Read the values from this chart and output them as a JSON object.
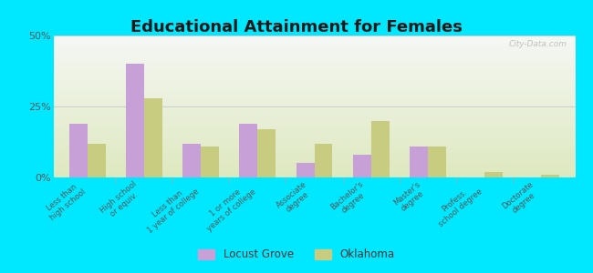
{
  "title": "Educational Attainment for Females",
  "categories": [
    "Less than\nhigh school",
    "High school\nor equiv.",
    "Less than\n1 year of college",
    "1 or more\nyears of college",
    "Associate\ndegree",
    "Bachelor's\ndegree",
    "Master's\ndegree",
    "Profess.\nschool degree",
    "Doctorate\ndegree"
  ],
  "locust_grove": [
    19,
    40,
    12,
    19,
    5,
    8,
    11,
    0,
    0
  ],
  "oklahoma": [
    12,
    28,
    11,
    17,
    12,
    20,
    11,
    2,
    1
  ],
  "locust_grove_color": "#c8a0d8",
  "oklahoma_color": "#c8cc80",
  "background_outer": "#00e8ff",
  "ylim": [
    0,
    50
  ],
  "yticks": [
    0,
    25,
    50
  ],
  "ytick_labels": [
    "0%",
    "25%",
    "50%"
  ],
  "legend_locust": "Locust Grove",
  "legend_oklahoma": "Oklahoma"
}
